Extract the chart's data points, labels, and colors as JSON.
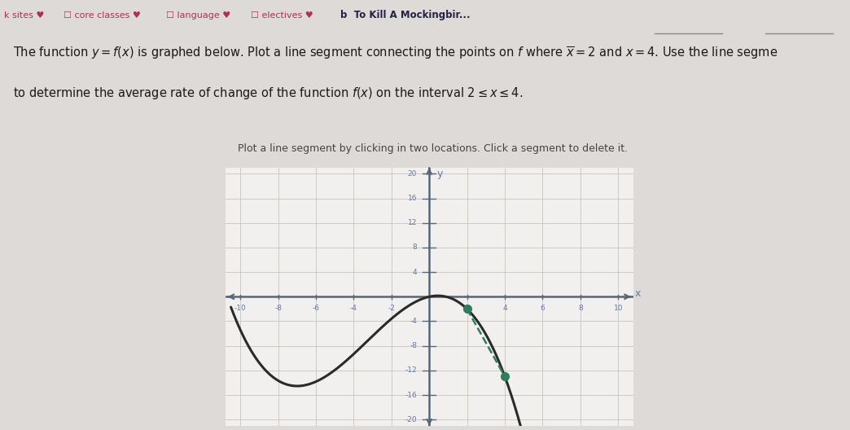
{
  "bg_color": "#dedad8",
  "tab_bg_color": "#ccc8cc",
  "plot_bg_color": "#f2f0ee",
  "curve_color": "#2a2a2a",
  "segment_color": "#2e7d5e",
  "dot_color": "#2e7d5e",
  "axis_color": "#556677",
  "tick_label_color": "#6677aa",
  "text_color": "#1a1a1a",
  "subtitle_color": "#444444",
  "xmin": -10,
  "xmax": 10,
  "ymin": -20,
  "ymax": 20,
  "xticks": [
    -10,
    -8,
    -6,
    -4,
    -2,
    2,
    4,
    6,
    8,
    10
  ],
  "yticks": [
    -20,
    -16,
    -12,
    -8,
    -4,
    4,
    8,
    12,
    16,
    20
  ],
  "segment_x1": 2,
  "segment_x2": 4,
  "tab_labels": [
    "k sites",
    "core classes",
    "language",
    "electives",
    "To Kill A Mockingbir..."
  ],
  "title_line1": "The function $y = f(x)$ is graphed below. Plot a line segment connecting the points on $f$ where $x = 2$ and $x = 4$. Use the line segme",
  "title_line2": "to determine the average rate of change of the function $f(x)$ on the interval $2 \\leq x \\leq 4$.",
  "subtitle": "Plot a line segment by clicking in two locations. Click a segment to delete it.",
  "a_coef": -0.07113,
  "b_coef": -0.6975,
  "c_coef": 0.68,
  "d_coef": 0.0
}
